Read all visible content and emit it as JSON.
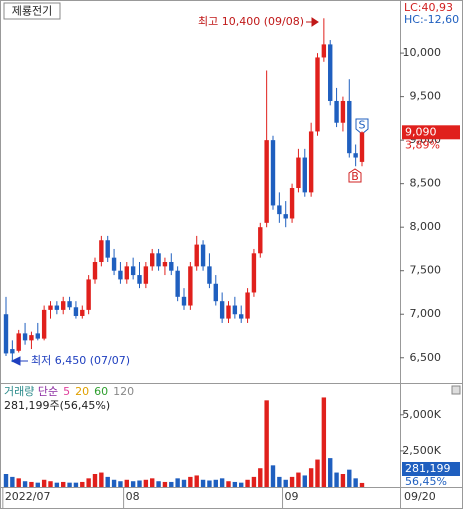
{
  "header": {
    "stock_name": "제룡전기",
    "lc": "LC:40,93",
    "hc": "HC:-12,60",
    "high_note": "최고 10,400 (09/08)",
    "low_note": "최저 6,450 (07/07)",
    "sell_marker": "S",
    "buy_marker": "B",
    "last_price_label": "9,090",
    "change_label": "3,89%"
  },
  "volume_header": {
    "title": "거래량",
    "ma_type": "단순",
    "periods": [
      {
        "value": 5,
        "color": "#e0409c"
      },
      {
        "value": 20,
        "color": "#e0a000"
      },
      {
        "value": 60,
        "color": "#2e9e2e"
      },
      {
        "value": 120,
        "color": "#888888"
      }
    ],
    "info": "281,199주(56,45%)",
    "last_volume_label": "281,199",
    "ratio_label": "56,45%"
  },
  "chart_data": [
    {
      "type": "candlestick",
      "up_color": "#e0201c",
      "down_color": "#1f5fbf",
      "ylim": [
        6210,
        10610
      ],
      "yticks": [
        {
          "value": 6500,
          "label": "6,500"
        },
        {
          "value": 7000,
          "label": "7,000"
        },
        {
          "value": 7500,
          "label": "7,500"
        },
        {
          "value": 8000,
          "label": "8,000"
        },
        {
          "value": 8500,
          "label": "8,500"
        },
        {
          "value": 9000,
          "label": "9,000"
        },
        {
          "value": 9500,
          "label": "9,500"
        },
        {
          "value": 10000,
          "label": "10,000"
        }
      ],
      "candles": [
        [
          7000,
          7200,
          6520,
          6550
        ],
        [
          6600,
          6700,
          6450,
          6550
        ],
        [
          6580,
          6820,
          6560,
          6780
        ],
        [
          6780,
          6900,
          6650,
          6700
        ],
        [
          6700,
          6800,
          6600,
          6760
        ],
        [
          6780,
          6900,
          6700,
          6720
        ],
        [
          6720,
          7100,
          6700,
          7050
        ],
        [
          7050,
          7150,
          6950,
          7100
        ],
        [
          7100,
          7150,
          7000,
          7050
        ],
        [
          7050,
          7200,
          7000,
          7150
        ],
        [
          7150,
          7200,
          7050,
          7080
        ],
        [
          7080,
          7150,
          6950,
          6980
        ],
        [
          6980,
          7100,
          6950,
          7050
        ],
        [
          7050,
          7450,
          7000,
          7400
        ],
        [
          7400,
          7650,
          7350,
          7600
        ],
        [
          7600,
          7900,
          7550,
          7850
        ],
        [
          7850,
          7900,
          7600,
          7650
        ],
        [
          7650,
          7750,
          7450,
          7500
        ],
        [
          7500,
          7600,
          7350,
          7400
        ],
        [
          7400,
          7600,
          7350,
          7550
        ],
        [
          7550,
          7650,
          7400,
          7450
        ],
        [
          7450,
          7600,
          7300,
          7350
        ],
        [
          7350,
          7600,
          7300,
          7550
        ],
        [
          7550,
          7750,
          7500,
          7700
        ],
        [
          7700,
          7750,
          7500,
          7550
        ],
        [
          7550,
          7650,
          7450,
          7600
        ],
        [
          7600,
          7700,
          7450,
          7500
        ],
        [
          7500,
          7550,
          7150,
          7200
        ],
        [
          7200,
          7300,
          7050,
          7100
        ],
        [
          7100,
          7600,
          7050,
          7550
        ],
        [
          7550,
          7900,
          7500,
          7800
        ],
        [
          7800,
          7850,
          7500,
          7550
        ],
        [
          7550,
          7700,
          7300,
          7350
        ],
        [
          7350,
          7450,
          7100,
          7150
        ],
        [
          7150,
          7250,
          6900,
          6950
        ],
        [
          6950,
          7150,
          6900,
          7100
        ],
        [
          7100,
          7200,
          6950,
          7000
        ],
        [
          7000,
          7100,
          6900,
          6950
        ],
        [
          6950,
          7300,
          6900,
          7250
        ],
        [
          7250,
          7750,
          7200,
          7700
        ],
        [
          7700,
          8050,
          7650,
          8000
        ],
        [
          8050,
          9800,
          8000,
          9000
        ],
        [
          9000,
          9050,
          8200,
          8250
        ],
        [
          8250,
          8400,
          8050,
          8150
        ],
        [
          8150,
          8300,
          8000,
          8100
        ],
        [
          8100,
          8500,
          8050,
          8450
        ],
        [
          8450,
          8900,
          8400,
          8800
        ],
        [
          8800,
          8900,
          8350,
          8400
        ],
        [
          8400,
          9200,
          8350,
          9100
        ],
        [
          9100,
          10000,
          9050,
          9950
        ],
        [
          9950,
          10400,
          9900,
          10100
        ],
        [
          10100,
          10150,
          9400,
          9450
        ],
        [
          9450,
          9600,
          9150,
          9200
        ],
        [
          9200,
          9500,
          9100,
          9450
        ],
        [
          9450,
          9700,
          8800,
          8850
        ],
        [
          8850,
          8950,
          8700,
          8800
        ],
        [
          8750,
          9100,
          8700,
          9090
        ]
      ]
    },
    {
      "type": "bar",
      "ylim": [
        0,
        7200000
      ],
      "yticks": [
        {
          "value": 2500000,
          "label": "2,500K"
        },
        {
          "value": 5000000,
          "label": "5,000K"
        }
      ],
      "categories": [
        "2022/07",
        null,
        null,
        null,
        null,
        null,
        null,
        null,
        null,
        null,
        null,
        null,
        null,
        null,
        null,
        null,
        null,
        null,
        null,
        "08",
        null,
        null,
        null,
        null,
        null,
        null,
        null,
        null,
        null,
        null,
        null,
        null,
        null,
        null,
        null,
        null,
        null,
        null,
        null,
        null,
        null,
        null,
        null,
        null,
        "09",
        null,
        null,
        null,
        null,
        null,
        null,
        null,
        null,
        null,
        null,
        null,
        null
      ],
      "x_end_label": "09/20",
      "values": [
        900000,
        700000,
        600000,
        400000,
        350000,
        300000,
        500000,
        400000,
        300000,
        350000,
        300000,
        300000,
        350000,
        600000,
        900000,
        1000000,
        700000,
        500000,
        400000,
        500000,
        400000,
        450000,
        500000,
        600000,
        400000,
        350000,
        350000,
        600000,
        500000,
        700000,
        800000,
        500000,
        450000,
        500000,
        600000,
        400000,
        350000,
        300000,
        500000,
        700000,
        1300000,
        6000000,
        1500000,
        700000,
        500000,
        700000,
        1000000,
        800000,
        1300000,
        1900000,
        6200000,
        2000000,
        1000000,
        900000,
        1200000,
        600000,
        281199
      ]
    }
  ]
}
